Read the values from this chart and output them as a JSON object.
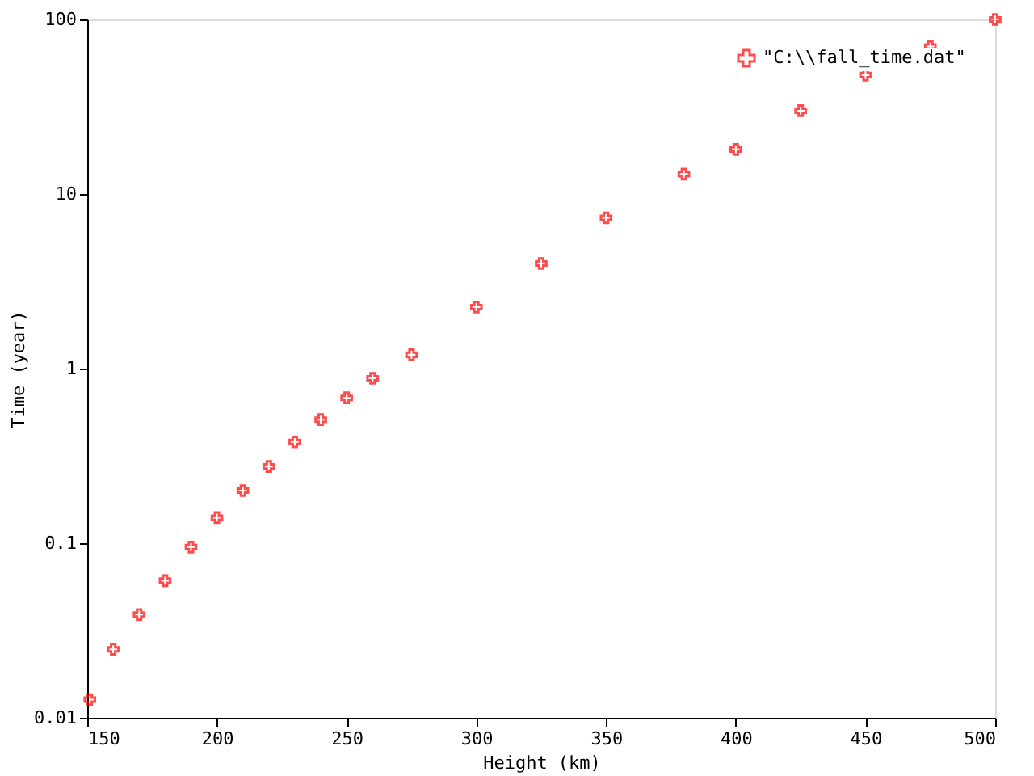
{
  "chart_data": {
    "type": "scatter",
    "xlabel": "Height (km)",
    "ylabel": "Time (year)",
    "xlim": [
      150,
      500
    ],
    "xticks": [
      150,
      200,
      250,
      300,
      350,
      400,
      450,
      500
    ],
    "ylim": [
      0.01,
      100
    ],
    "yticks": [
      0.01,
      0.1,
      1,
      10,
      100
    ],
    "log": "y",
    "grid": false,
    "legend": "top right",
    "marker": "cross",
    "series": [
      {
        "name": "\"C:\\\\fall_time.dat\"",
        "color": "#ff0000",
        "x": [
          151,
          160,
          170,
          180,
          190,
          200,
          210,
          220,
          230,
          240,
          250,
          260,
          275,
          300,
          325,
          350,
          380,
          400,
          425,
          450,
          475,
          500
        ],
        "values": [
          0.0127,
          0.0247,
          0.039,
          0.061,
          0.095,
          0.14,
          0.2,
          0.275,
          0.38,
          0.51,
          0.68,
          0.88,
          1.2,
          2.25,
          4.0,
          7.3,
          13,
          18,
          30,
          48,
          70,
          100
        ]
      }
    ]
  }
}
